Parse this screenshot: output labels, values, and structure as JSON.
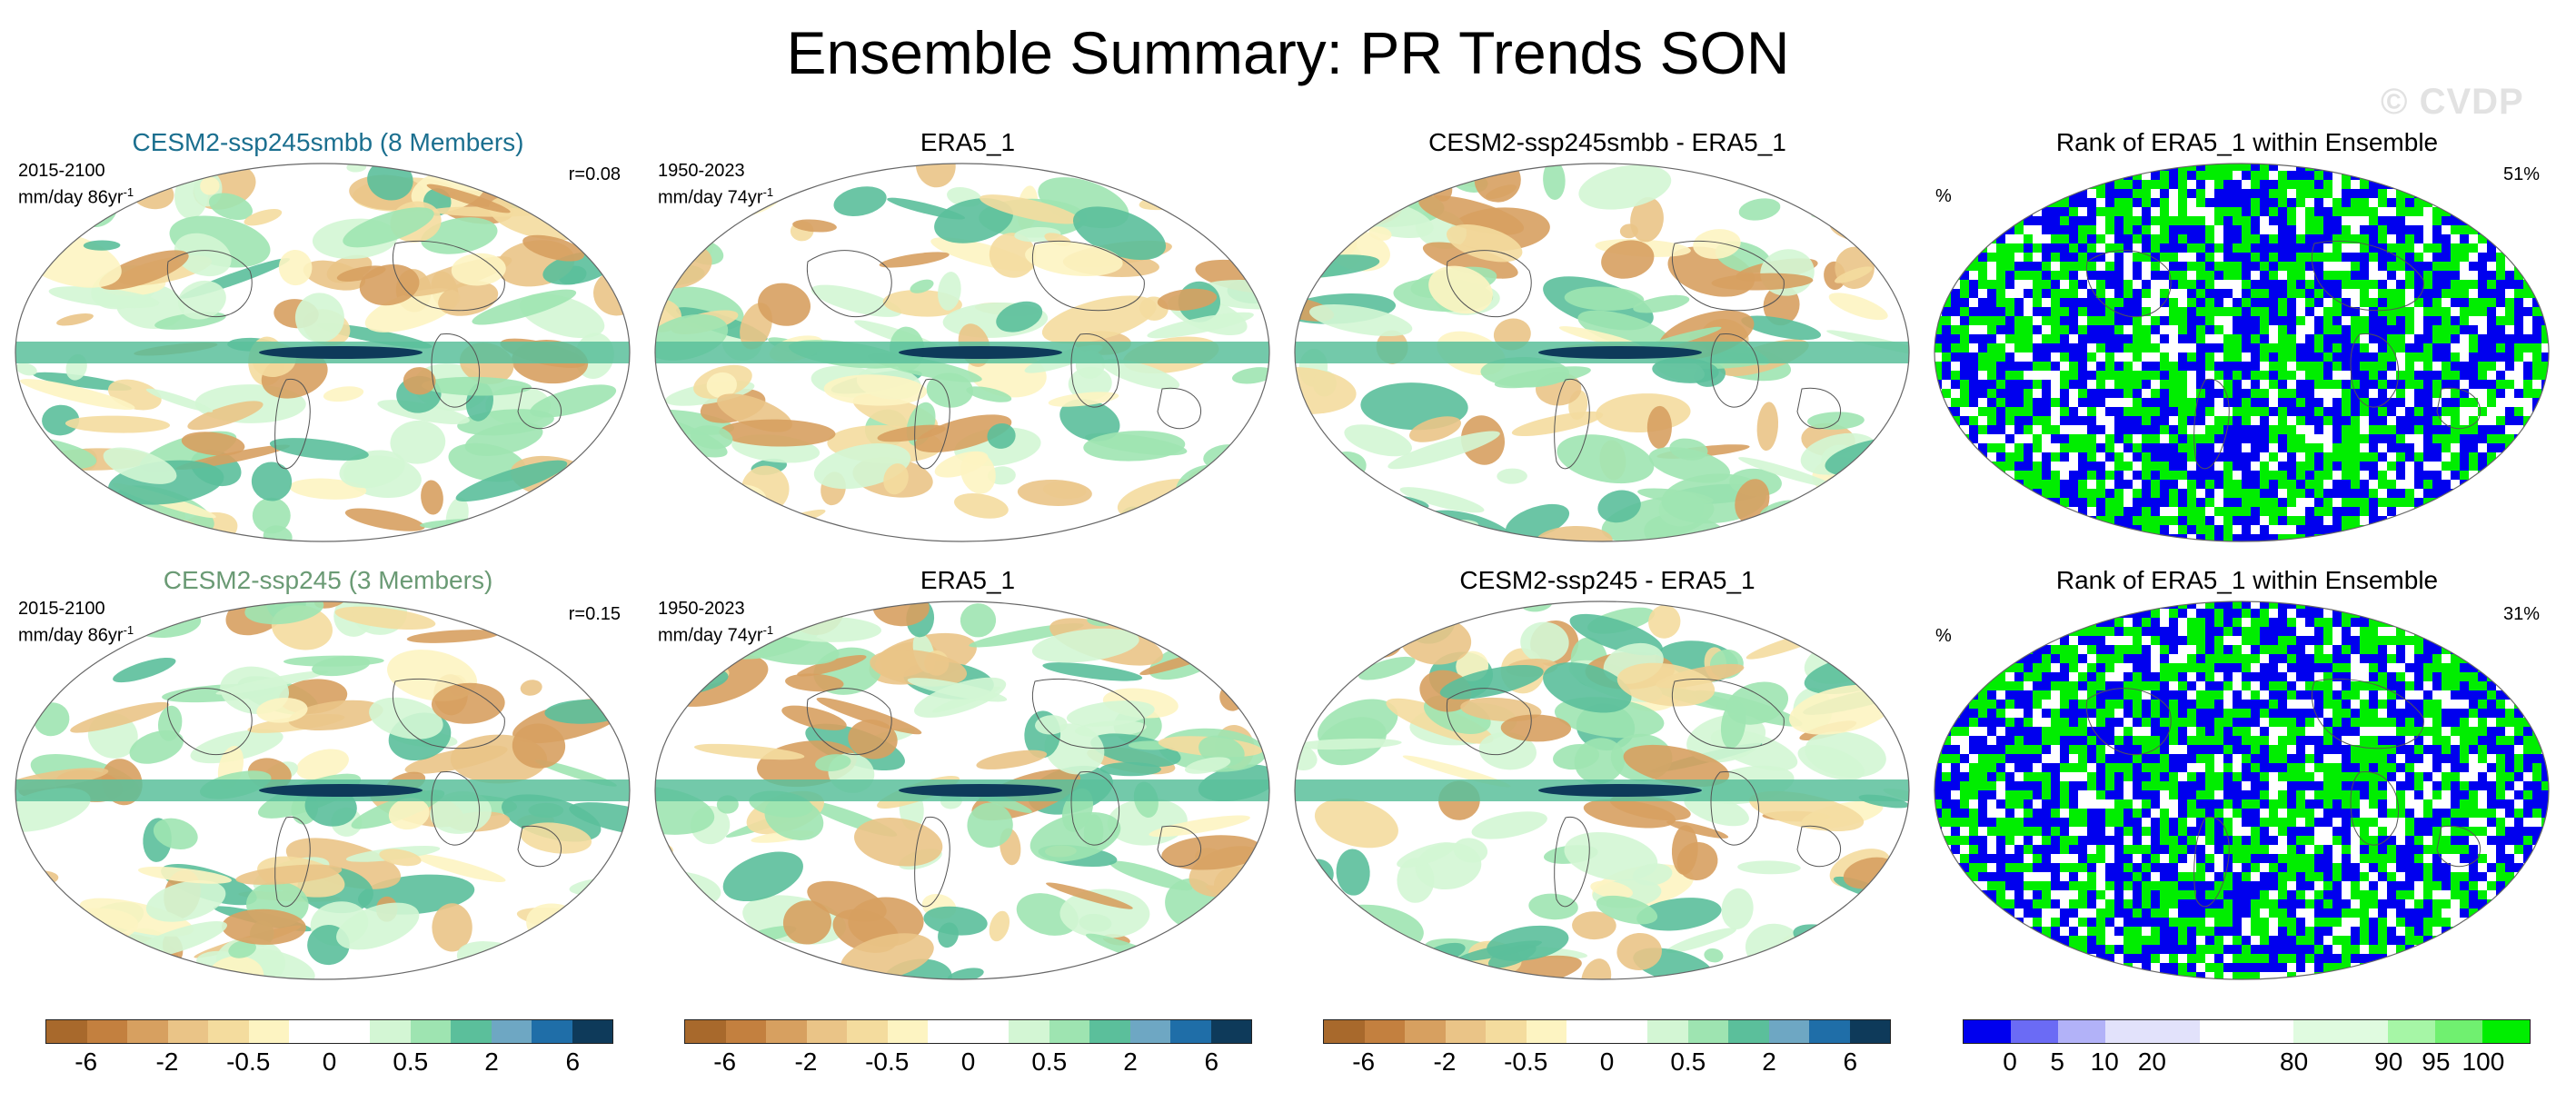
{
  "title": "Ensemble Summary: PR Trends SON",
  "watermark": "© CVDP",
  "rows": [
    {
      "panels": [
        {
          "title": "CESM2-ssp245smbb (8 Members)",
          "title_color": "#1b6f8f",
          "period": "2015-2100",
          "units_text": "mm/day 86yr",
          "units_exp": "-1",
          "corr": "r=0.08",
          "kind": "trend"
        },
        {
          "title": "ERA5_1",
          "title_color": "#000000",
          "period": "1950-2023",
          "units_text": "mm/day 74yr",
          "units_exp": "-1",
          "kind": "trend"
        },
        {
          "title": "CESM2-ssp245smbb - ERA5_1",
          "title_color": "#000000",
          "kind": "trend"
        },
        {
          "title": "Rank of ERA5_1 within Ensemble",
          "title_color": "#000000",
          "pct_symbol": "%",
          "pct_value": "51%",
          "kind": "rank"
        }
      ]
    },
    {
      "panels": [
        {
          "title": "CESM2-ssp245 (3 Members)",
          "title_color": "#6a9a74",
          "period": "2015-2100",
          "units_text": "mm/day 86yr",
          "units_exp": "-1",
          "corr": "r=0.15",
          "kind": "trend"
        },
        {
          "title": "ERA5_1",
          "title_color": "#000000",
          "period": "1950-2023",
          "units_text": "mm/day 74yr",
          "units_exp": "-1",
          "kind": "trend"
        },
        {
          "title": "CESM2-ssp245 - ERA5_1",
          "title_color": "#000000",
          "kind": "trend"
        },
        {
          "title": "Rank of ERA5_1 within Ensemble",
          "title_color": "#000000",
          "pct_symbol": "%",
          "pct_value": "31%",
          "kind": "rank"
        }
      ]
    }
  ],
  "colorbars": {
    "trend": {
      "colors": [
        "#a8692c",
        "#c3803f",
        "#d7a060",
        "#eac487",
        "#f4dc9e",
        "#fdf4c2",
        "#ffffff",
        "#ffffff",
        "#d3f6d4",
        "#9ee4b1",
        "#5bbf9b",
        "#6ea7c3",
        "#1f6ea8",
        "#0e3a5a"
      ],
      "labels": [
        "-6",
        "-2",
        "-0.5",
        "0",
        "0.5",
        "2",
        "6"
      ]
    },
    "rank": {
      "colors": [
        "#0000ee",
        "#6b6bf5",
        "#b2b2f8",
        "#e2e2fb",
        "#e2e2fb",
        "#ffffff",
        "#ffffff",
        "#e0fbe0",
        "#e0fbe0",
        "#a6f6a6",
        "#70f070",
        "#00ee00"
      ],
      "labels": [
        "0",
        "5",
        "10",
        "20",
        "80",
        "90",
        "95",
        "100"
      ]
    }
  }
}
